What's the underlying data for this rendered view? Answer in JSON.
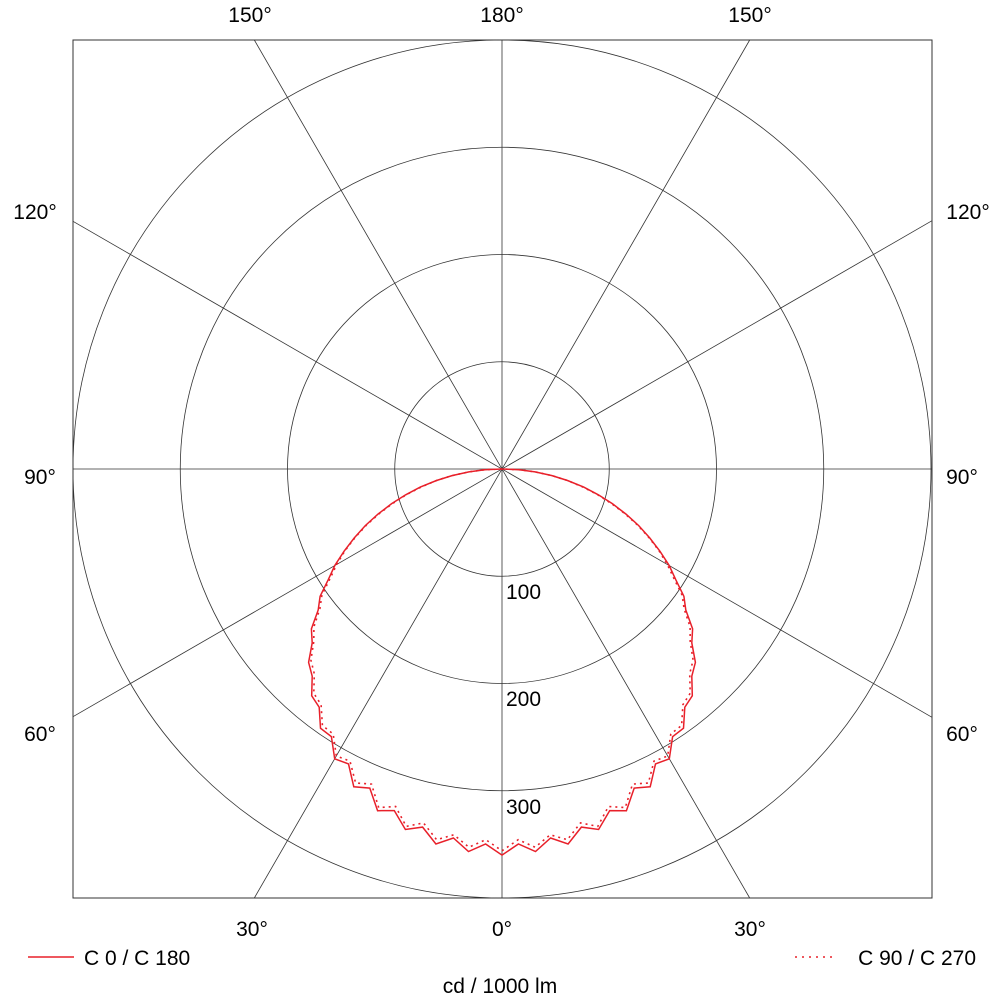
{
  "chart_data": {
    "type": "polar-line",
    "unit_label": "cd / 1000 lm",
    "radial_range": [
      0,
      400
    ],
    "radial_ticks": [
      100,
      200,
      300,
      400
    ],
    "radial_tick_labels": [
      "100",
      "200",
      "300"
    ],
    "angle_tick_labels": {
      "top": [
        "150°",
        "180°",
        "150°"
      ],
      "upper_sides": "120°",
      "middle_sides": "90°",
      "lower_sides": "60°",
      "bottom": [
        "30°",
        "0°",
        "30°"
      ]
    },
    "angles_deg": [
      0,
      2.5,
      5,
      7.5,
      10,
      12.5,
      15,
      17.5,
      20,
      22.5,
      25,
      27.5,
      30,
      32.5,
      35,
      37.5,
      40,
      42.5,
      45,
      47.5,
      50,
      52.5,
      55,
      57.5,
      60,
      62.5,
      65,
      67.5,
      70,
      72.5,
      75,
      77.5,
      80,
      82.5,
      85,
      87.5,
      90
    ],
    "series": [
      {
        "name": "C 0 / C 180",
        "style": "solid",
        "color": "#e8202a",
        "values": [
          360,
          350,
          358,
          347,
          355,
          342,
          348,
          334,
          339,
          322,
          327,
          310,
          312,
          296,
          295,
          280,
          276,
          262,
          255,
          240,
          232,
          216,
          207,
          192,
          180,
          166,
          152,
          138,
          123,
          108,
          93,
          78,
          62,
          47,
          31,
          16,
          0
        ]
      },
      {
        "name": "C 90 / C 270",
        "style": "dotted",
        "color": "#e8202a",
        "values": [
          356,
          346,
          354,
          344,
          351,
          338,
          345,
          330,
          336,
          318,
          323,
          307,
          309,
          293,
          292,
          277,
          273,
          259,
          252,
          238,
          229,
          214,
          205,
          190,
          178,
          165,
          151,
          137,
          122,
          107,
          92,
          77,
          62,
          47,
          31,
          16,
          0
        ]
      }
    ],
    "grid": true,
    "legend": "bottom"
  }
}
